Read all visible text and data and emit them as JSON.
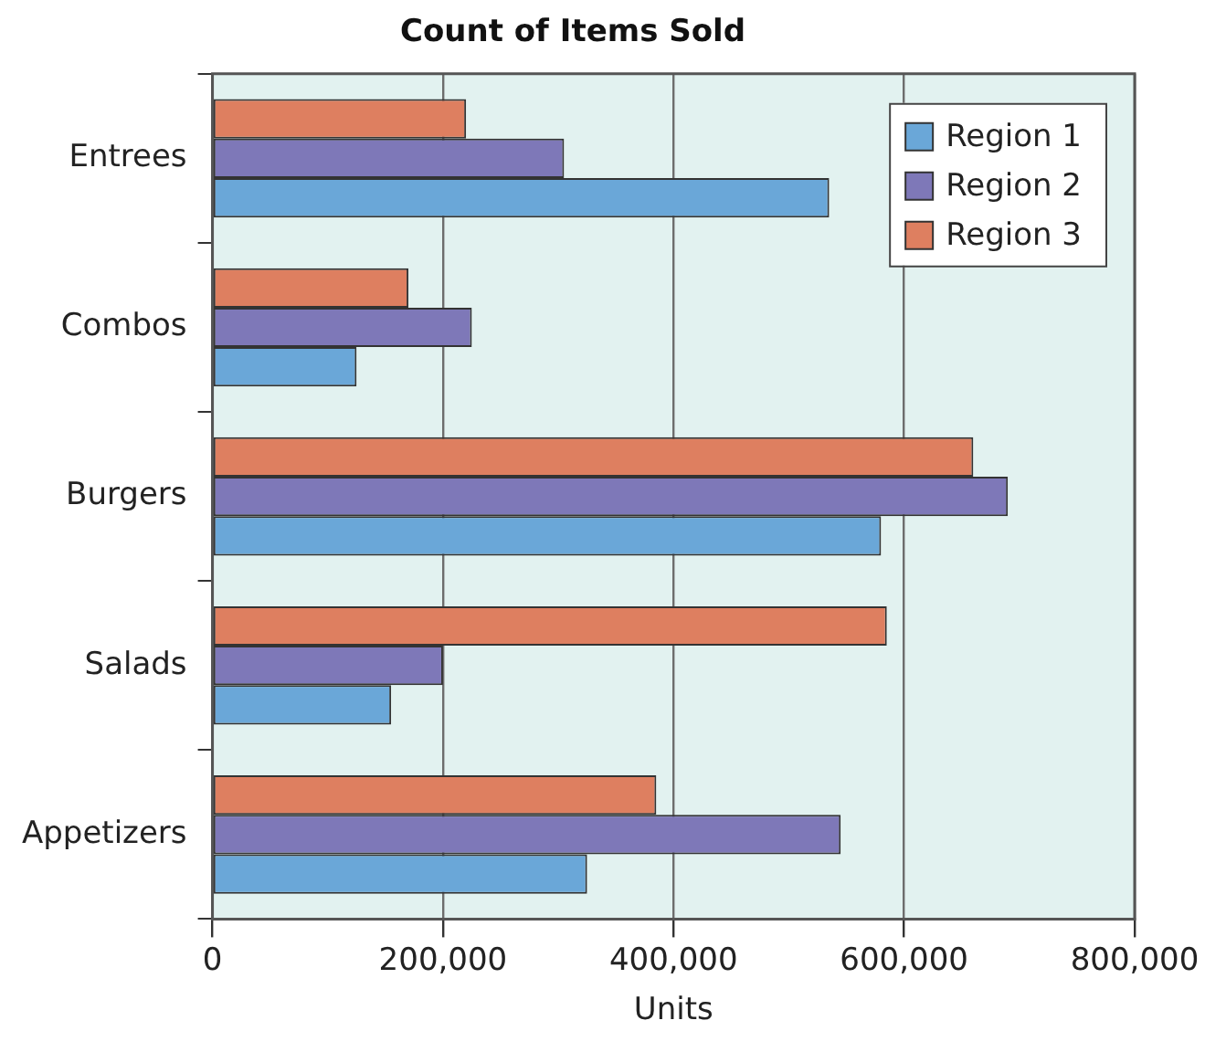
{
  "chart_data": {
    "type": "bar",
    "orientation": "horizontal",
    "title": "Count of Items Sold",
    "xlabel": "Units",
    "categories": [
      "Entrees",
      "Combos",
      "Burgers",
      "Salads",
      "Appetizers"
    ],
    "series": [
      {
        "name": "Region 1",
        "color": "#6aa7d8",
        "values": [
          535000,
          125000,
          580000,
          155000,
          325000
        ]
      },
      {
        "name": "Region 2",
        "color": "#7e78b8",
        "values": [
          305000,
          225000,
          690000,
          200000,
          545000
        ]
      },
      {
        "name": "Region 3",
        "color": "#de7f60",
        "values": [
          220000,
          170000,
          660000,
          585000,
          385000
        ]
      }
    ],
    "xlim": [
      0,
      800000
    ],
    "xticks": [
      {
        "value": 0,
        "label": "0"
      },
      {
        "value": 200000,
        "label": "200,000"
      },
      {
        "value": 400000,
        "label": "400,000"
      },
      {
        "value": 600000,
        "label": "600,000"
      },
      {
        "value": 800000,
        "label": "800,000"
      }
    ],
    "grid": "x",
    "legend": "top right"
  }
}
